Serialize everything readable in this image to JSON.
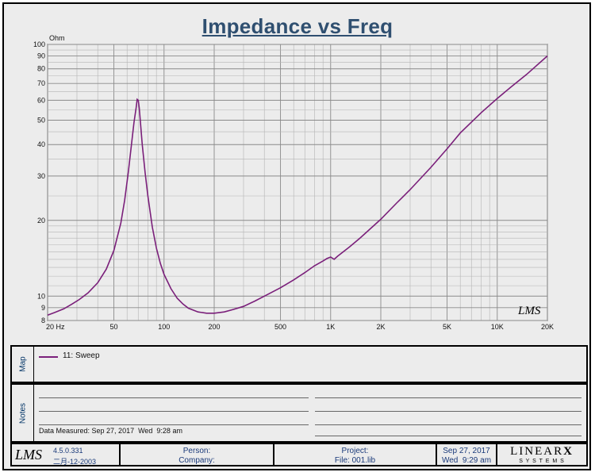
{
  "chart_data": {
    "type": "line",
    "title": "Impedance vs Freq",
    "ylabel": "Ohm",
    "xscale": "log",
    "yscale": "log",
    "xlim": [
      20,
      20000
    ],
    "ylim": [
      8,
      100
    ],
    "x_tick_labels": [
      "20 Hz",
      "50",
      "100",
      "200",
      "500",
      "1K",
      "2K",
      "5K",
      "10K",
      "20K"
    ],
    "x_tick_values": [
      20,
      50,
      100,
      200,
      500,
      1000,
      2000,
      5000,
      10000,
      20000
    ],
    "y_tick_labels": [
      "8",
      "9",
      "10",
      "20",
      "30",
      "40",
      "50",
      "60",
      "70",
      "80",
      "90",
      "100"
    ],
    "y_tick_values": [
      8,
      9,
      10,
      20,
      30,
      40,
      50,
      60,
      70,
      80,
      90,
      100
    ],
    "grid": true,
    "watermark": "LMS",
    "series": [
      {
        "name": "11: Sweep",
        "color": "#7a1f7a",
        "x": [
          20,
          22,
          25,
          28,
          31,
          35,
          40,
          45,
          50,
          55,
          58,
          61,
          64,
          66,
          68,
          69,
          70,
          71,
          72,
          74,
          77,
          80,
          85,
          90,
          95,
          100,
          110,
          120,
          130,
          140,
          160,
          180,
          200,
          230,
          260,
          300,
          350,
          400,
          500,
          600,
          700,
          800,
          900,
          950,
          1000,
          1050,
          1100,
          1300,
          1500,
          2000,
          2500,
          3000,
          4000,
          5000,
          6000,
          8000,
          10000,
          12000,
          15000,
          20000
        ],
        "y": [
          8.4,
          8.6,
          8.9,
          9.3,
          9.7,
          10.3,
          11.3,
          12.8,
          15.2,
          19.5,
          24,
          31,
          41,
          49,
          56,
          60.5,
          60,
          56,
          50,
          40,
          31,
          25,
          18.8,
          15.5,
          13.5,
          12.2,
          10.7,
          9.8,
          9.3,
          8.95,
          8.65,
          8.55,
          8.55,
          8.65,
          8.85,
          9.1,
          9.55,
          10,
          10.8,
          11.6,
          12.4,
          13.2,
          13.8,
          14.1,
          14.3,
          14.0,
          14.4,
          15.7,
          17,
          20.2,
          23.5,
          26.5,
          32.5,
          38.5,
          44.5,
          53.5,
          61,
          67.5,
          76,
          90
        ]
      }
    ]
  },
  "map": {
    "label": "Map",
    "legend_entry": "11: Sweep"
  },
  "notes": {
    "label": "Notes",
    "data_measured": "Data Measured: Sep 27, 2017  Wed  9:28 am"
  },
  "footer": {
    "logo": "LMS",
    "version": "4.5.0.331",
    "version_date": "二月-12-2003",
    "person_label": "Person:",
    "company_label": "Company:",
    "project_label": "Project:",
    "file_label": "File: 001.lib",
    "date": "Sep 27, 2017",
    "time": "Wed  9:29 am",
    "brand_line1": "LINEAR",
    "brand_x": "X",
    "brand_line2": "S Y S T E M S"
  }
}
